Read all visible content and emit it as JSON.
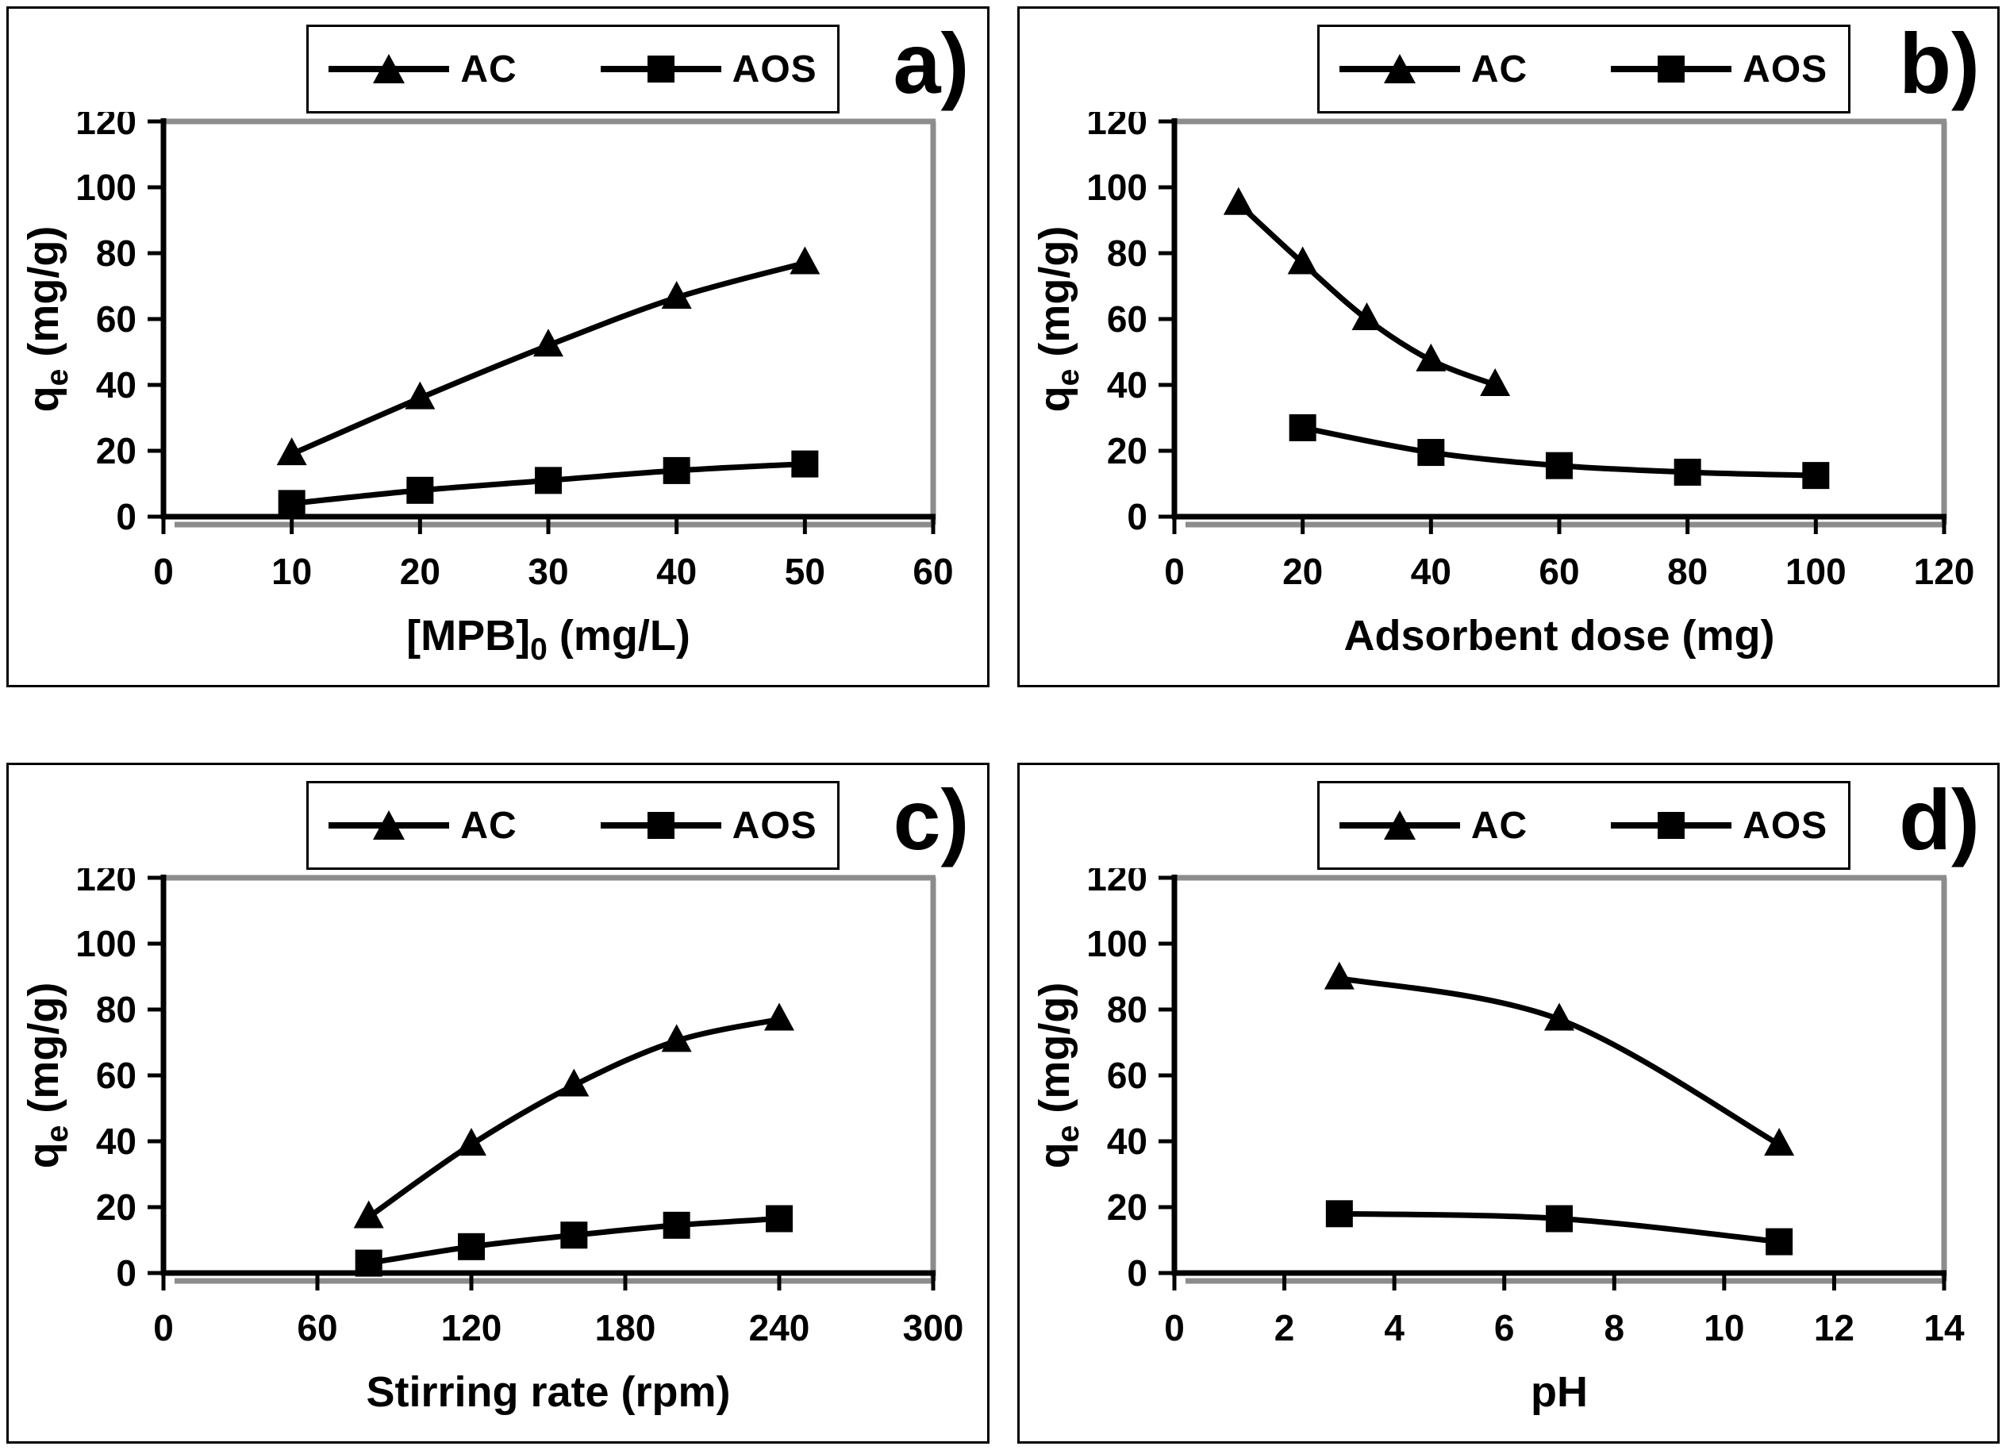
{
  "figure": {
    "background": "#ffffff",
    "line_color": "#000000",
    "plot_border_gray": "#8c8c8c"
  },
  "chart_data": [
    {
      "type": "line",
      "panel_label": "a)",
      "xlabel": {
        "pre": "[MPB]",
        "sub": "0",
        "post": " (mg/L)"
      },
      "ylabel": {
        "pre": "q",
        "sub": "e",
        "post": " (mg/g)"
      },
      "xlim": [
        0,
        60
      ],
      "xticks": [
        0,
        10,
        20,
        30,
        40,
        50,
        60
      ],
      "ylim": [
        0,
        120
      ],
      "yticks": [
        0,
        20,
        40,
        60,
        80,
        100,
        120
      ],
      "grid": false,
      "legend_position": "top",
      "series": [
        {
          "name": "AC",
          "marker": "triangle",
          "x": [
            10,
            20,
            30,
            40,
            50
          ],
          "y": [
            19,
            36,
            52,
            66.5,
            77
          ]
        },
        {
          "name": "AOS",
          "marker": "square",
          "x": [
            10,
            20,
            30,
            40,
            50
          ],
          "y": [
            4,
            8,
            11,
            14,
            16
          ]
        }
      ]
    },
    {
      "type": "line",
      "panel_label": "b)",
      "xlabel": {
        "pre": "Adsorbent dose (mg)",
        "sub": "",
        "post": ""
      },
      "ylabel": {
        "pre": "q",
        "sub": "e",
        "post": " (mg/g)"
      },
      "xlim": [
        0,
        120
      ],
      "xticks": [
        0,
        20,
        40,
        60,
        80,
        100,
        120
      ],
      "ylim": [
        0,
        120
      ],
      "yticks": [
        0,
        20,
        40,
        60,
        80,
        100,
        120
      ],
      "grid": false,
      "legend_position": "top",
      "series": [
        {
          "name": "AC",
          "marker": "triangle",
          "x": [
            10,
            20,
            30,
            40,
            50
          ],
          "y": [
            95,
            77,
            60,
            47.5,
            40
          ]
        },
        {
          "name": "AOS",
          "marker": "square",
          "x": [
            20,
            40,
            60,
            80,
            100
          ],
          "y": [
            27,
            19.5,
            15.5,
            13.5,
            12.5
          ]
        }
      ]
    },
    {
      "type": "line",
      "panel_label": "c)",
      "xlabel": {
        "pre": "Stirring rate (rpm)",
        "sub": "",
        "post": ""
      },
      "ylabel": {
        "pre": "q",
        "sub": "e",
        "post": " (mg/g)"
      },
      "xlim": [
        0,
        300
      ],
      "xticks": [
        0,
        60,
        120,
        180,
        240,
        300
      ],
      "ylim": [
        0,
        120
      ],
      "yticks": [
        0,
        20,
        40,
        60,
        80,
        100,
        120
      ],
      "grid": false,
      "legend_position": "top",
      "series": [
        {
          "name": "AC",
          "marker": "triangle",
          "x": [
            80,
            120,
            160,
            200,
            240
          ],
          "y": [
            17,
            39,
            57,
            70.5,
            77
          ]
        },
        {
          "name": "AOS",
          "marker": "square",
          "x": [
            80,
            120,
            160,
            200,
            240
          ],
          "y": [
            3,
            8,
            11.5,
            14.5,
            16.5
          ]
        }
      ]
    },
    {
      "type": "line",
      "panel_label": "d)",
      "xlabel": {
        "pre": "pH",
        "sub": "",
        "post": ""
      },
      "ylabel": {
        "pre": "q",
        "sub": "e",
        "post": " (mg/g)"
      },
      "xlim": [
        0,
        14
      ],
      "xticks": [
        0,
        2,
        4,
        6,
        8,
        10,
        12,
        14
      ],
      "ylim": [
        0,
        120
      ],
      "yticks": [
        0,
        20,
        40,
        60,
        80,
        100,
        120
      ],
      "grid": false,
      "legend_position": "top",
      "series": [
        {
          "name": "AC",
          "marker": "triangle",
          "x": [
            3,
            7,
            11
          ],
          "y": [
            89.5,
            77,
            39
          ]
        },
        {
          "name": "AOS",
          "marker": "square",
          "x": [
            3,
            7,
            11
          ],
          "y": [
            18,
            16.5,
            9.5
          ]
        }
      ]
    }
  ]
}
